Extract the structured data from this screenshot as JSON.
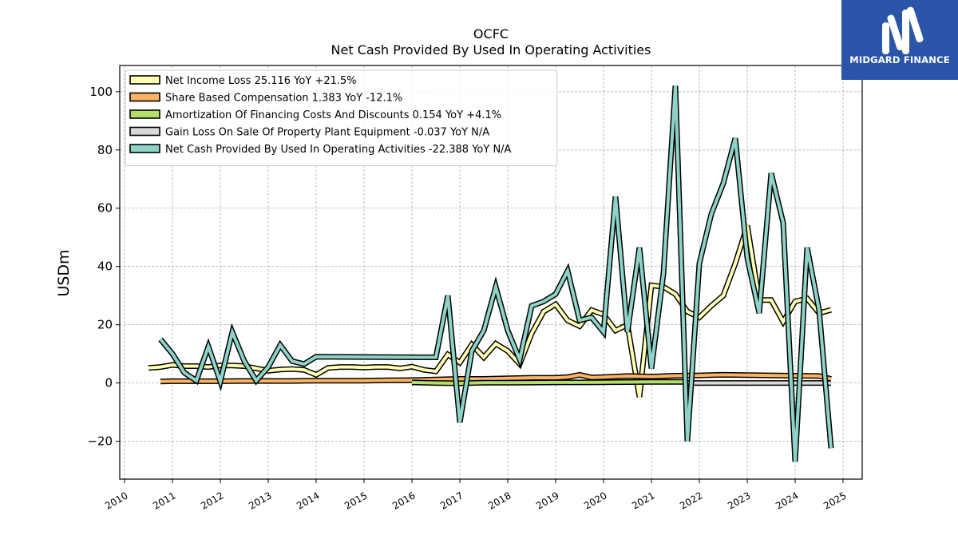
{
  "logo": {
    "text": "MIDGARD FINANCE",
    "background": "#2b55a8"
  },
  "chart_data": {
    "type": "line",
    "title": "OCFC",
    "subtitle": "Net Cash Provided By Used In Operating Activities",
    "ylabel": "USDm",
    "xlabel": "",
    "xlim": [
      2009.9,
      2025.4
    ],
    "ylim": [
      -33,
      109
    ],
    "x_ticks": [
      2010,
      2011,
      2012,
      2013,
      2014,
      2015,
      2016,
      2017,
      2018,
      2019,
      2020,
      2021,
      2022,
      2023,
      2024,
      2025
    ],
    "y_ticks": [
      -20,
      0,
      20,
      40,
      60,
      80,
      100
    ],
    "y_tick_labels": [
      "−20",
      "0",
      "20",
      "40",
      "60",
      "80",
      "100"
    ],
    "grid": true,
    "legend_position": "top-left",
    "series": [
      {
        "name": "Net Income Loss  25.116 YoY +21.5%",
        "color": "#ffffb3",
        "x": [
          2010.5,
          2010.75,
          2011.0,
          2011.25,
          2011.5,
          2011.75,
          2012.0,
          2012.25,
          2012.5,
          2012.75,
          2013.0,
          2013.25,
          2013.5,
          2013.75,
          2014.0,
          2014.25,
          2014.5,
          2014.75,
          2015.0,
          2015.25,
          2015.5,
          2015.75,
          2016.0,
          2016.25,
          2016.5,
          2016.75,
          2017.0,
          2017.25,
          2017.5,
          2017.75,
          2018.0,
          2018.25,
          2018.5,
          2018.75,
          2019.0,
          2019.25,
          2019.5,
          2019.75,
          2020.0,
          2020.25,
          2020.5,
          2020.75,
          2021.0,
          2021.25,
          2021.5,
          2021.75,
          2022.0,
          2022.25,
          2022.5,
          2022.75,
          2023.0,
          2023.25,
          2023.5,
          2023.75,
          2024.0,
          2024.25,
          2024.5,
          2024.75
        ],
        "values": [
          5.2,
          5.5,
          6.2,
          5.8,
          5.8,
          5.5,
          6.0,
          6.0,
          5.8,
          5.0,
          4.2,
          4.6,
          4.8,
          4.5,
          2.8,
          5.2,
          5.5,
          5.5,
          5.3,
          5.5,
          5.5,
          5.0,
          5.6,
          4.5,
          4.0,
          9.8,
          7.0,
          13.2,
          8.8,
          13.5,
          11.0,
          6.5,
          17.0,
          24.5,
          27.0,
          21.5,
          19.5,
          25.0,
          23.5,
          18.0,
          20.0,
          -4.8,
          33.5,
          33.0,
          30.5,
          24.5,
          22.5,
          26.5,
          30.0,
          41.0,
          54.0,
          28.5,
          28.5,
          21.0,
          28.0,
          29.0,
          24.0,
          25.1
        ]
      },
      {
        "name": "Share Based Compensation  1.383 YoY -12.1%",
        "color": "#fdb462",
        "x": [
          2010.75,
          2011.0,
          2011.5,
          2012.0,
          2012.5,
          2013.0,
          2013.5,
          2014.0,
          2014.5,
          2015.0,
          2015.5,
          2016.0,
          2016.5,
          2017.0,
          2017.5,
          2018.0,
          2018.5,
          2019.0,
          2019.25,
          2019.5,
          2019.75,
          2020.0,
          2020.5,
          2021.0,
          2021.5,
          2022.0,
          2022.5,
          2023.0,
          2023.5,
          2024.0,
          2024.5,
          2024.75
        ],
        "values": [
          0.5,
          0.6,
          0.6,
          0.6,
          0.7,
          0.7,
          0.7,
          0.8,
          0.8,
          0.8,
          0.9,
          1.0,
          1.2,
          1.4,
          1.4,
          1.6,
          1.8,
          1.8,
          2.0,
          2.8,
          1.9,
          2.0,
          2.4,
          2.2,
          2.5,
          2.6,
          2.8,
          2.7,
          2.6,
          2.5,
          2.4,
          1.4
        ]
      },
      {
        "name": "Amortization Of Financing Costs And Discounts  0.154 YoY +4.1%",
        "color": "#b3de69",
        "x": [
          2016.0,
          2016.5,
          2017.0,
          2017.5,
          2018.0,
          2018.5,
          2019.0,
          2019.5,
          2020.0,
          2020.5,
          2021.0,
          2021.5,
          2021.75
        ],
        "values": [
          0.2,
          0.0,
          -0.1,
          0.1,
          0.1,
          0.15,
          0.2,
          0.2,
          0.25,
          0.3,
          0.35,
          0.4,
          0.4
        ]
      },
      {
        "name": "Gain Loss On Sale Of Property Plant Equipment  -0.037 YoY N/A",
        "color": "#d9d9d9",
        "x": [
          2021.75,
          2022.0,
          2022.5,
          2023.0,
          2023.5,
          2024.0,
          2024.5,
          2024.75
        ],
        "values": [
          0.0,
          0.0,
          0.0,
          0.0,
          0.0,
          0.0,
          0.0,
          -0.04
        ]
      },
      {
        "name": "Net Cash Provided By Used In Operating Activities  -22.388 YoY N/A",
        "color": "#8dd3c7",
        "x": [
          2010.75,
          2011.0,
          2011.25,
          2011.5,
          2011.75,
          2012.0,
          2012.25,
          2012.5,
          2012.75,
          2013.0,
          2013.25,
          2013.5,
          2013.75,
          2014.0,
          2016.5,
          2016.75,
          2017.0,
          2017.25,
          2017.5,
          2017.75,
          2018.0,
          2018.25,
          2018.5,
          2018.75,
          2019.0,
          2019.25,
          2019.5,
          2019.75,
          2020.0,
          2020.25,
          2020.5,
          2020.75,
          2021.0,
          2021.25,
          2021.5,
          2021.75,
          2022.0,
          2022.25,
          2022.5,
          2022.75,
          2023.0,
          2023.25,
          2023.5,
          2023.75,
          2024.0,
          2024.25,
          2024.5,
          2024.75
        ],
        "values": [
          15.0,
          10.0,
          3.5,
          0.8,
          12.5,
          0.5,
          17.5,
          7.5,
          0.8,
          5.5,
          13.0,
          7.5,
          6.5,
          9.0,
          8.8,
          30.0,
          -13.5,
          11.0,
          18.0,
          33.0,
          18.0,
          8.0,
          26.5,
          28.0,
          30.5,
          38.5,
          21.5,
          22.5,
          17.5,
          64.0,
          17.5,
          46.5,
          5.0,
          37.5,
          102.0,
          -20.0,
          41.0,
          58.0,
          68.5,
          84.0,
          43.0,
          24.0,
          72.0,
          55.0,
          -27.0,
          46.5,
          25.0,
          -22.4
        ]
      }
    ]
  }
}
